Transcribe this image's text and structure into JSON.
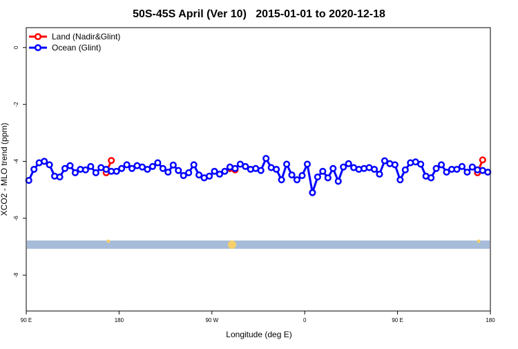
{
  "chart_data": {
    "type": "line",
    "title": "50S-45S April (Ver 10)   2015-01-01 to 2020-12-18",
    "x_label": "Longitude (deg E)",
    "y_label": "XCO2 - MLO trend (ppm)",
    "xlim": [
      90,
      540
    ],
    "ylim": [
      -9.26,
      0.7
    ],
    "xticks": [
      {
        "value": 90,
        "label": "90 E"
      },
      {
        "value": 180,
        "label": "180"
      },
      {
        "value": 270,
        "label": "90 W"
      },
      {
        "value": 360,
        "label": "0"
      },
      {
        "value": 450,
        "label": "90 E"
      },
      {
        "value": 540,
        "label": "180"
      }
    ],
    "yticks": [
      0,
      -2,
      -4,
      -6,
      -8
    ],
    "legend": "top-left",
    "series": [
      {
        "name": "Land (Nadir&Glint)",
        "color": "#ff0000",
        "x": [
          167.5,
          172.5,
          230,
          287.5,
          292.5,
          410,
          527.5,
          532.5
        ],
        "values": [
          -4.4,
          -3.97,
          null,
          -4.25,
          -4.3,
          null,
          -4.4,
          -3.95
        ]
      },
      {
        "name": "Ocean (Glint)",
        "color": "#0000ff",
        "x": [
          92.5,
          97.5,
          102.5,
          107.5,
          112.5,
          117.5,
          122.5,
          127.5,
          132.5,
          137.5,
          142.5,
          147.5,
          152.5,
          157.5,
          162.5,
          167.5,
          172.5,
          177.5,
          182.5,
          187.5,
          192.5,
          197.5,
          202.5,
          207.5,
          212.5,
          217.5,
          222.5,
          227.5,
          232.5,
          237.5,
          242.5,
          247.5,
          252.5,
          257.5,
          262.5,
          267.5,
          272.5,
          277.5,
          282.5,
          287.5,
          292.5,
          297.5,
          302.5,
          307.5,
          312.5,
          317.5,
          322.5,
          327.5,
          332.5,
          337.5,
          342.5,
          347.5,
          352.5,
          357.5,
          362.5,
          367.5,
          372.5,
          377.5,
          382.5,
          387.5,
          392.5,
          397.5,
          402.5,
          407.5,
          412.5,
          417.5,
          422.5,
          427.5,
          432.5,
          437.5,
          442.5,
          447.5,
          452.5,
          457.5,
          462.5,
          467.5,
          472.5,
          477.5,
          482.5,
          487.5,
          492.5,
          497.5,
          502.5,
          507.5,
          512.5,
          517.5,
          522.5,
          527.5,
          532.5,
          537.5
        ],
        "values": [
          -4.67,
          -4.28,
          -4.05,
          -4.0,
          -4.12,
          -4.52,
          -4.55,
          -4.25,
          -4.15,
          -4.4,
          -4.28,
          -4.3,
          -4.18,
          -4.4,
          -4.22,
          -4.28,
          -4.35,
          -4.35,
          -4.25,
          -4.12,
          -4.25,
          -4.15,
          -4.2,
          -4.28,
          -4.18,
          -4.05,
          -4.25,
          -4.38,
          -4.13,
          -4.32,
          -4.5,
          -4.4,
          -4.12,
          -4.48,
          -4.58,
          -4.52,
          -4.35,
          -4.45,
          -4.35,
          -4.2,
          -4.25,
          -4.1,
          -4.18,
          -4.28,
          -4.25,
          -4.32,
          -3.9,
          -4.22,
          -4.28,
          -4.65,
          -4.1,
          -4.48,
          -4.65,
          -4.5,
          -4.1,
          -5.1,
          -4.55,
          -4.35,
          -4.58,
          -4.25,
          -4.7,
          -4.2,
          -4.08,
          -4.22,
          -4.28,
          -4.25,
          -4.22,
          -4.28,
          -4.45,
          -3.98,
          -4.08,
          -4.12,
          -4.65,
          -4.3,
          -4.05,
          -4.02,
          -4.1,
          -4.52,
          -4.58,
          -4.25,
          -4.12,
          -4.38,
          -4.28,
          -4.28,
          -4.18,
          -4.38,
          -4.2,
          -4.3,
          -4.32,
          -4.38
        ]
      }
    ]
  }
}
